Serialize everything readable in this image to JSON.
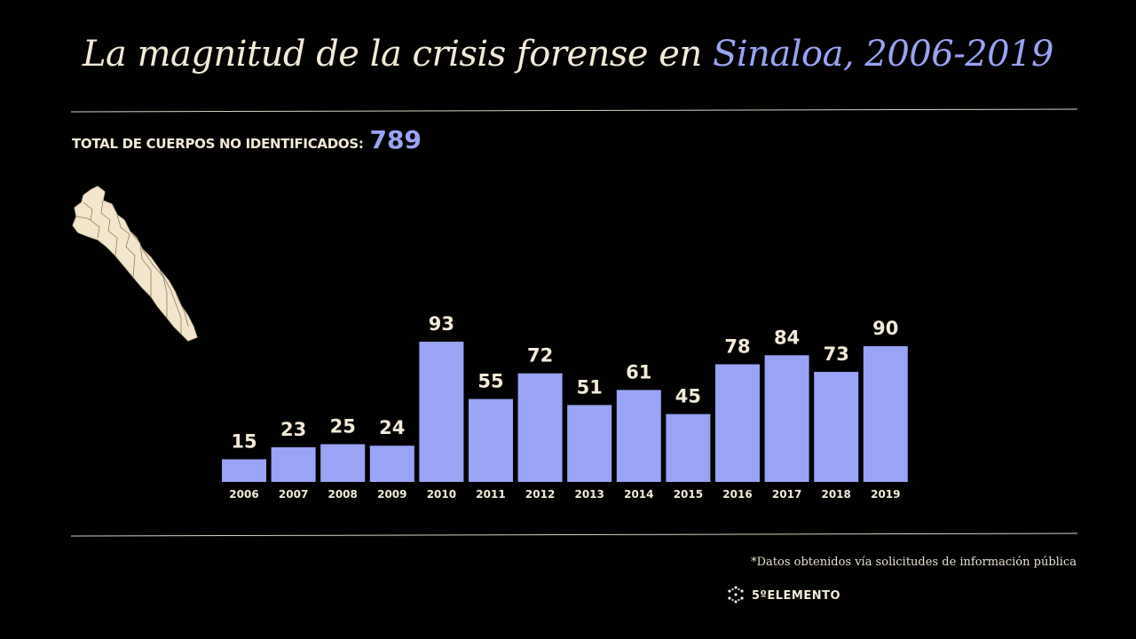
{
  "header": {
    "title_main": "La magnitud de la crisis forense en",
    "title_accent": "Sinaloa, 2006-2019"
  },
  "summary": {
    "label": "TOTAL DE CUERPOS NO IDENTIFICADOS:",
    "value": "789"
  },
  "colors": {
    "background": "#000000",
    "bar": "#9aa4f5",
    "text": "#f3ead8",
    "accent": "#9aa4f5"
  },
  "map_icon": "sinaloa-map-icon",
  "chart_data": {
    "type": "bar",
    "title": "La magnitud de la crisis forense en Sinaloa, 2006-2019",
    "categories": [
      "2006",
      "2007",
      "2008",
      "2009",
      "2010",
      "2011",
      "2012",
      "2013",
      "2014",
      "2015",
      "2016",
      "2017",
      "2018",
      "2019"
    ],
    "values": [
      15,
      23,
      25,
      24,
      93,
      55,
      72,
      51,
      61,
      45,
      78,
      84,
      73,
      90
    ],
    "xlabel": "",
    "ylabel": "",
    "ylim": [
      0,
      93
    ],
    "grid": false,
    "legend": "none",
    "data_labels": true
  },
  "footer": {
    "note": "*Datos obtenidos vía solicitudes de información pública",
    "brand": "5ºELEMENTO",
    "brand_icon": "hexagon-logo-icon"
  }
}
